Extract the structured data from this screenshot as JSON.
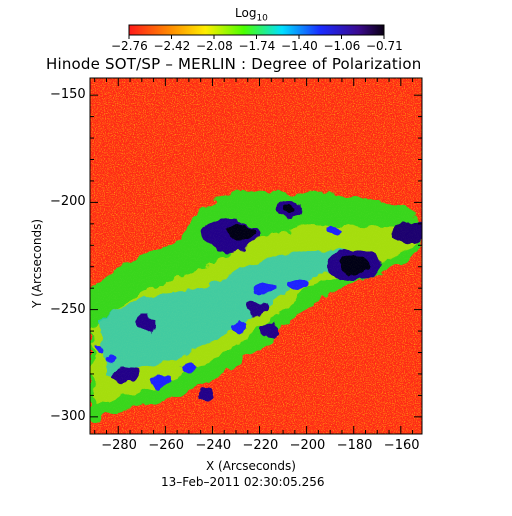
{
  "colorbar": {
    "label": "Log",
    "label_sub": "10",
    "ticks": [
      "−2.76",
      "−2.42",
      "−2.08",
      "−1.74",
      "−1.40",
      "−1.06",
      "−0.71"
    ]
  },
  "title": "Hinode SOT/SP – MERLIN : Degree of Polarization",
  "x_axis": {
    "label": "X (Arcseconds)",
    "ticks": [
      "−280",
      "−260",
      "−240",
      "−220",
      "−200",
      "−180",
      "−160"
    ]
  },
  "y_axis": {
    "label": "Y (Arcseconds)",
    "ticks": [
      "−150",
      "−200",
      "−250",
      "−300"
    ]
  },
  "timestamp": "13–Feb–2011 02:30:05.256"
}
